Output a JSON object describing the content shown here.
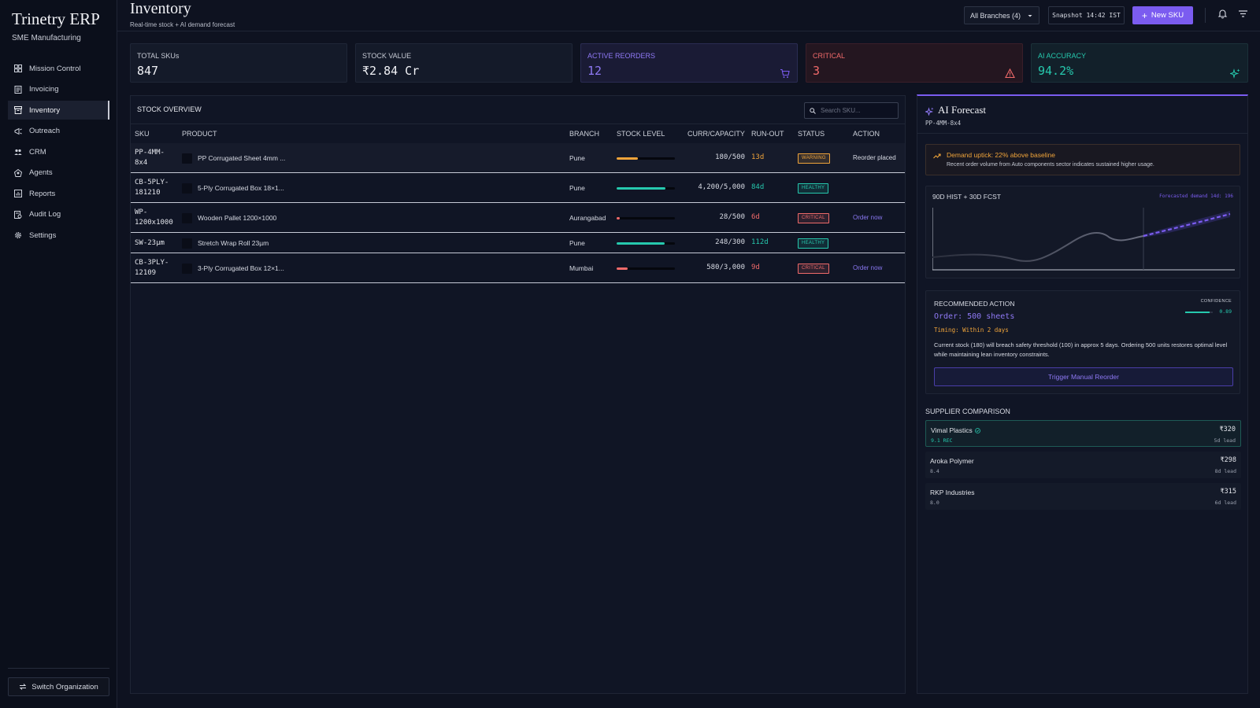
{
  "sidebar": {
    "brand": "Trinetry ERP",
    "org": "SME Manufacturing",
    "items": [
      {
        "label": "Mission Control",
        "icon": "grid-icon"
      },
      {
        "label": "Invoicing",
        "icon": "invoice-icon"
      },
      {
        "label": "Inventory",
        "icon": "box-icon",
        "active": true
      },
      {
        "label": "Outreach",
        "icon": "megaphone-icon"
      },
      {
        "label": "CRM",
        "icon": "users-icon"
      },
      {
        "label": "Agents",
        "icon": "agent-icon"
      },
      {
        "label": "Reports",
        "icon": "report-icon"
      },
      {
        "label": "Audit Log",
        "icon": "audit-icon"
      },
      {
        "label": "Settings",
        "icon": "gear-icon"
      }
    ],
    "switch_org": "Switch Organization"
  },
  "header": {
    "title": "Inventory",
    "subtitle": "Real-time stock + AI demand forecast",
    "branch_select": "All Branches (4)",
    "snapshot": "Snapshot 14:42 IST",
    "new_sku": "New SKU"
  },
  "kpis": [
    {
      "label": "TOTAL SKUs",
      "value": "847"
    },
    {
      "label": "STOCK VALUE",
      "value": "₹2.84 Cr"
    },
    {
      "label": "ACTIVE REORDERS",
      "value": "12"
    },
    {
      "label": "CRITICAL",
      "value": "3"
    },
    {
      "label": "AI ACCURACY",
      "value": "94.2%"
    }
  ],
  "stock": {
    "title": "STOCK OVERVIEW",
    "search_placeholder": "Search SKU...",
    "columns": {
      "sku": "SKU",
      "product": "PRODUCT",
      "branch": "BRANCH",
      "stock_level": "STOCK LEVEL",
      "curcap": "CURR/CAPACITY",
      "runout": "RUN-OUT",
      "status": "STATUS",
      "action": "ACTION"
    },
    "rows": [
      {
        "sku_1": "PP-4MM-",
        "sku_2": "8x4",
        "product": "PP Corrugated Sheet 4mm ...",
        "branch": "Pune",
        "level": 0.36,
        "curcap": "180/500",
        "runout": "13d",
        "status": "WARNING",
        "action": "Reorder placed"
      },
      {
        "sku_1": "CB-5PLY-",
        "sku_2": "181210",
        "product": "5-Ply Corrugated Box 18×1...",
        "branch": "Pune",
        "level": 0.84,
        "curcap": "4,200/5,000",
        "runout": "84d",
        "status": "HEALTHY",
        "action": ""
      },
      {
        "sku_1": "WP-",
        "sku_2": "1200x1000",
        "product": "Wooden Pallet 1200×1000",
        "branch": "Aurangabad",
        "level": 0.056,
        "curcap": "28/500",
        "runout": "6d",
        "status": "CRITICAL",
        "action": "Order now"
      },
      {
        "sku_1": "SW-23µm",
        "sku_2": "",
        "product": "Stretch Wrap Roll 23µm",
        "branch": "Pune",
        "level": 0.83,
        "curcap": "248/300",
        "runout": "112d",
        "status": "HEALTHY",
        "action": ""
      },
      {
        "sku_1": "CB-3PLY-",
        "sku_2": "12109",
        "product": "3-Ply Corrugated Box 12×1...",
        "branch": "Mumbai",
        "level": 0.193,
        "curcap": "580/3,000",
        "runout": "9d",
        "status": "CRITICAL",
        "action": "Order now"
      }
    ]
  },
  "ai": {
    "title": "AI Forecast",
    "sku": "PP-4MM-8x4",
    "uptick_title": "Demand uptick: 22% above baseline",
    "uptick_text": "Recent order volume from Auto components sector indicates sustained higher usage.",
    "chart_title": "90D HIST + 30D FCST",
    "chart_legend": "Forecasted demand 14d: 196",
    "rec_title": "RECOMMENDED ACTION",
    "confidence_label": "CONFIDENCE",
    "confidence_value": "0.89",
    "confidence": 0.89,
    "order": "Order: 500 sheets",
    "timing": "Timing: Within 2 days",
    "rec_text": "Current stock (180) will breach safety threshold (100) in approx 5 days. Ordering 500 units restores optimal level while maintaining lean inventory constraints.",
    "trigger": "Trigger Manual Reorder",
    "supplier_title": "SUPPLIER COMPARISON",
    "suppliers": [
      {
        "name": "Vimal Plastics",
        "score": "9.1 REC",
        "price": "₹320",
        "lead": "5d lead"
      },
      {
        "name": "Aroka Polymer",
        "score": "8.4",
        "price": "₹298",
        "lead": "8d lead"
      },
      {
        "name": "RKP Industries",
        "score": "8.0",
        "price": "₹315",
        "lead": "6d lead"
      }
    ]
  },
  "colors": {
    "accent": "#7b5cf0",
    "healthy": "#26c9ae",
    "warning": "#f0a43a",
    "critical": "#f06a6a"
  }
}
